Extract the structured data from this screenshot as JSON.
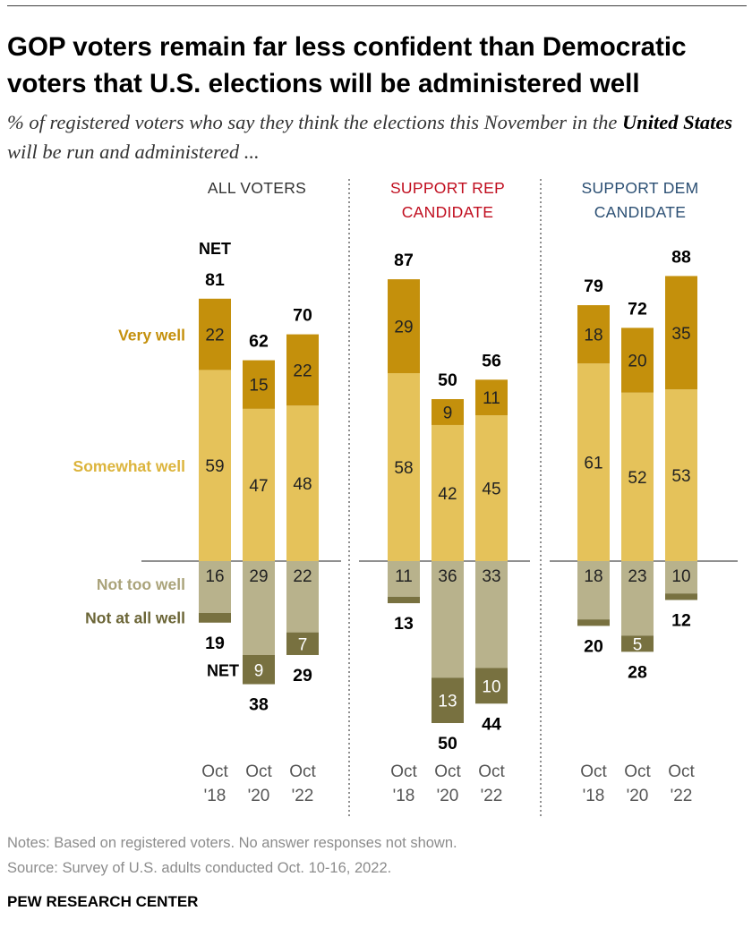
{
  "header": {
    "title": "GOP voters remain far less confident than Democratic voters that U.S. elections will be administered well",
    "subtitle_part1": "% of registered voters who say they think the elections this November in the ",
    "subtitle_bold": "United States",
    "subtitle_part2": " will be run and administered ..."
  },
  "footer": {
    "notes": "Notes: Based on registered voters. No answer responses not shown.",
    "source": "Source: Survey of U.S. adults conducted Oct. 10-16, 2022.",
    "brand": "PEW RESEARCH CENTER"
  },
  "colors": {
    "very_well": "#c4900c",
    "somewhat_well": "#e5c25a",
    "not_too_well": "#b8b28c",
    "not_at_all_well": "#787140",
    "very_well_label": "#c4900c",
    "somewhat_well_label": "#dcb43c",
    "not_too_well_label": "#aaa37a",
    "not_at_all_well_label": "#6b6536",
    "rep_header": "#c00d1e",
    "dem_header": "#2b4f73",
    "all_header": "#333333"
  },
  "chart_data": {
    "type": "bar",
    "stacked": "diverging",
    "categories": [
      "Oct '18",
      "Oct '20",
      "Oct '22"
    ],
    "net_label": "NET",
    "legend": {
      "very_well": "Very well",
      "somewhat_well": "Somewhat well",
      "not_too_well": "Not too well",
      "not_at_all_well": "Not at all well"
    },
    "groups": [
      {
        "name": "ALL VOTERS",
        "header_lines": [
          "ALL VOTERS"
        ],
        "bars": [
          {
            "x_month": "Oct",
            "x_year": "'18",
            "very_well": 22,
            "somewhat_well": 59,
            "net_well": 81,
            "not_too_well": 16,
            "not_at_all_well": 3,
            "net_not_well": 19
          },
          {
            "x_month": "Oct",
            "x_year": "'20",
            "very_well": 15,
            "somewhat_well": 47,
            "net_well": 62,
            "not_too_well": 29,
            "not_at_all_well": 9,
            "net_not_well": 38
          },
          {
            "x_month": "Oct",
            "x_year": "'22",
            "very_well": 22,
            "somewhat_well": 48,
            "net_well": 70,
            "not_too_well": 22,
            "not_at_all_well": 7,
            "net_not_well": 29
          }
        ]
      },
      {
        "name": "SUPPORT REP CANDIDATE",
        "header_lines": [
          "SUPPORT REP",
          "CANDIDATE"
        ],
        "bars": [
          {
            "x_month": "Oct",
            "x_year": "'18",
            "very_well": 29,
            "somewhat_well": 58,
            "net_well": 87,
            "not_too_well": 11,
            "not_at_all_well": 2,
            "net_not_well": 13
          },
          {
            "x_month": "Oct",
            "x_year": "'20",
            "very_well": 9,
            "somewhat_well": 42,
            "net_well": 50,
            "not_too_well": 36,
            "not_at_all_well": 13,
            "net_not_well": 50
          },
          {
            "x_month": "Oct",
            "x_year": "'22",
            "very_well": 11,
            "somewhat_well": 45,
            "net_well": 56,
            "not_too_well": 33,
            "not_at_all_well": 10,
            "net_not_well": 44
          }
        ]
      },
      {
        "name": "SUPPORT DEM CANDIDATE",
        "header_lines": [
          "SUPPORT DEM",
          "CANDIDATE"
        ],
        "bars": [
          {
            "x_month": "Oct",
            "x_year": "'18",
            "very_well": 18,
            "somewhat_well": 61,
            "net_well": 79,
            "not_too_well": 18,
            "not_at_all_well": 2,
            "net_not_well": 20
          },
          {
            "x_month": "Oct",
            "x_year": "'20",
            "very_well": 20,
            "somewhat_well": 52,
            "net_well": 72,
            "not_too_well": 23,
            "not_at_all_well": 5,
            "net_not_well": 28
          },
          {
            "x_month": "Oct",
            "x_year": "'22",
            "very_well": 35,
            "somewhat_well": 53,
            "net_well": 88,
            "not_too_well": 10,
            "not_at_all_well": 2,
            "net_not_well": 12
          }
        ]
      }
    ]
  }
}
